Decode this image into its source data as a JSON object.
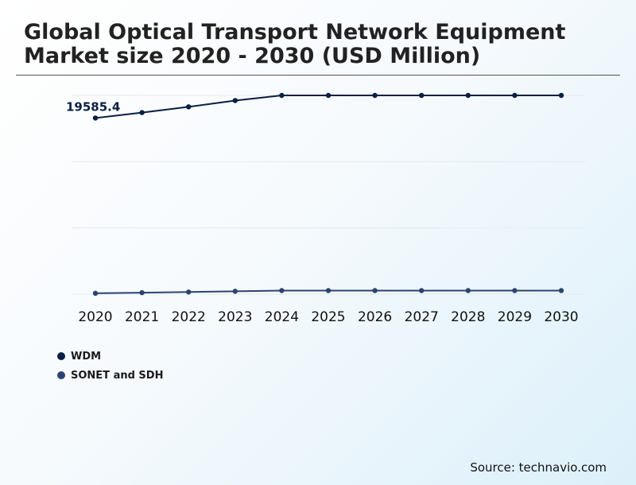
{
  "title": "Global Optical Transport Network Equipment Market size 2020 - 2030 (USD Million)",
  "source": "Source: technavio.com",
  "colors": {
    "wdm": "#0a1f44",
    "sonet": "#2c4370",
    "grid": "#e6e9ee"
  },
  "chart_data": {
    "type": "line",
    "categories": [
      "2020",
      "2021",
      "2022",
      "2023",
      "2024",
      "2025",
      "2026",
      "2027",
      "2028",
      "2029",
      "2030"
    ],
    "series": [
      {
        "name": "WDM",
        "values": [
          19585.4,
          20190,
          20830,
          21530,
          22100,
          22100,
          22100,
          22100,
          22100,
          22100,
          22100
        ]
      },
      {
        "name": "SONET and SDH",
        "values": [
          100,
          170,
          240,
          320,
          400,
          400,
          400,
          400,
          400,
          400,
          400
        ]
      }
    ],
    "data_labels": [
      {
        "series": 0,
        "index": 0,
        "text": "19585.4"
      }
    ],
    "ylim": [
      0,
      22100
    ],
    "grid": true,
    "legend": "bottom-left"
  }
}
